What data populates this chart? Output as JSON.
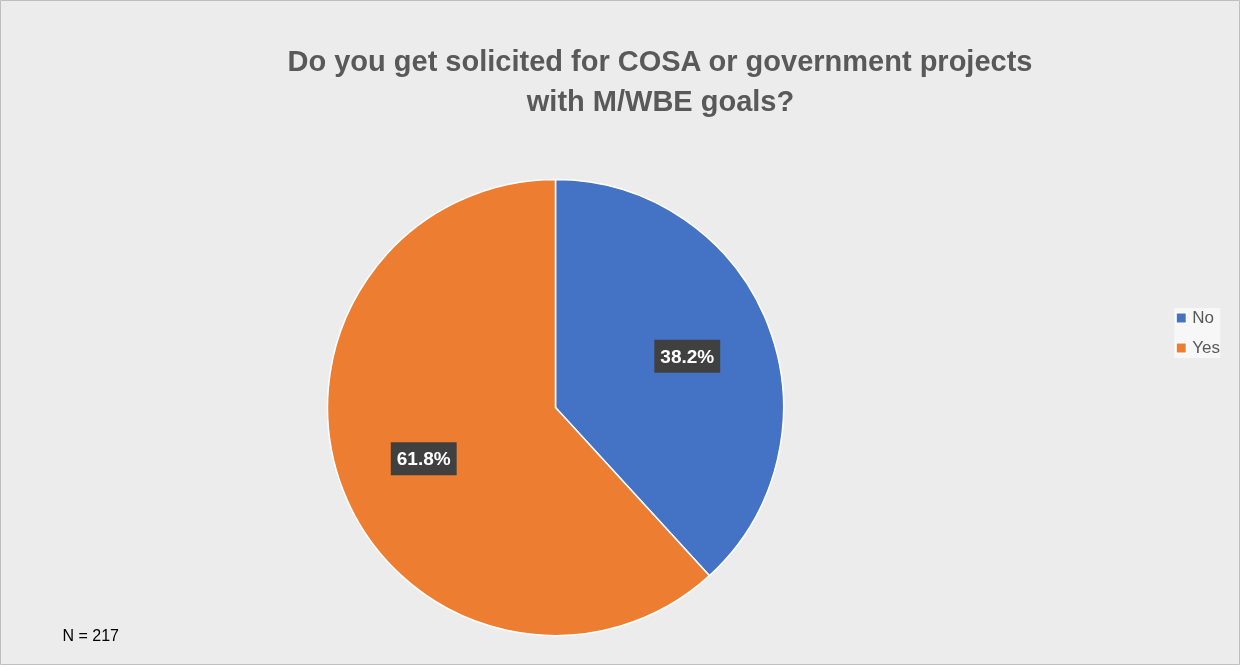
{
  "chart_data": {
    "type": "pie",
    "title": "Do you get solicited for COSA or government projects\nwith M/WBE goals?",
    "categories": [
      "No",
      "Yes"
    ],
    "values": [
      38.2,
      61.8
    ],
    "colors": [
      "#4472c4",
      "#ed7d31"
    ],
    "value_labels": [
      "38.2%",
      "61.8%"
    ],
    "legend": "right",
    "annotations": [
      "N = 217"
    ]
  }
}
